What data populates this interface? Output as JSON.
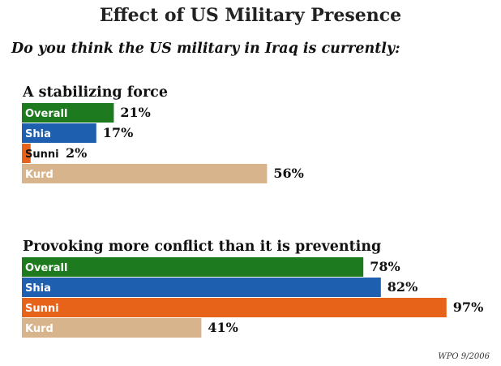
{
  "title": "Effect of US Military Presence",
  "subtitle": "Do you think the US military in Iraq is currently:",
  "source": "WPO 9/2006",
  "colors": {
    "Overall": "#1e7a1e",
    "Shia": "#1f5fb0",
    "Sunni": "#e8631a",
    "Kurd": "#d8b48c"
  },
  "chart_data": [
    {
      "type": "bar",
      "orientation": "horizontal",
      "title": "A stabilizing force",
      "categories": [
        "Overall",
        "Shia",
        "Sunni",
        "Kurd"
      ],
      "values": [
        21,
        17,
        2,
        56
      ],
      "value_labels": [
        "21%",
        "17%",
        "2%",
        "56%"
      ],
      "xlim": [
        0,
        100
      ]
    },
    {
      "type": "bar",
      "orientation": "horizontal",
      "title": "Provoking more conflict than it is preventing",
      "categories": [
        "Overall",
        "Shia",
        "Sunni",
        "Kurd"
      ],
      "values": [
        78,
        82,
        97,
        41
      ],
      "value_labels": [
        "78%",
        "82%",
        "97%",
        "41%"
      ],
      "xlim": [
        0,
        100
      ]
    }
  ]
}
